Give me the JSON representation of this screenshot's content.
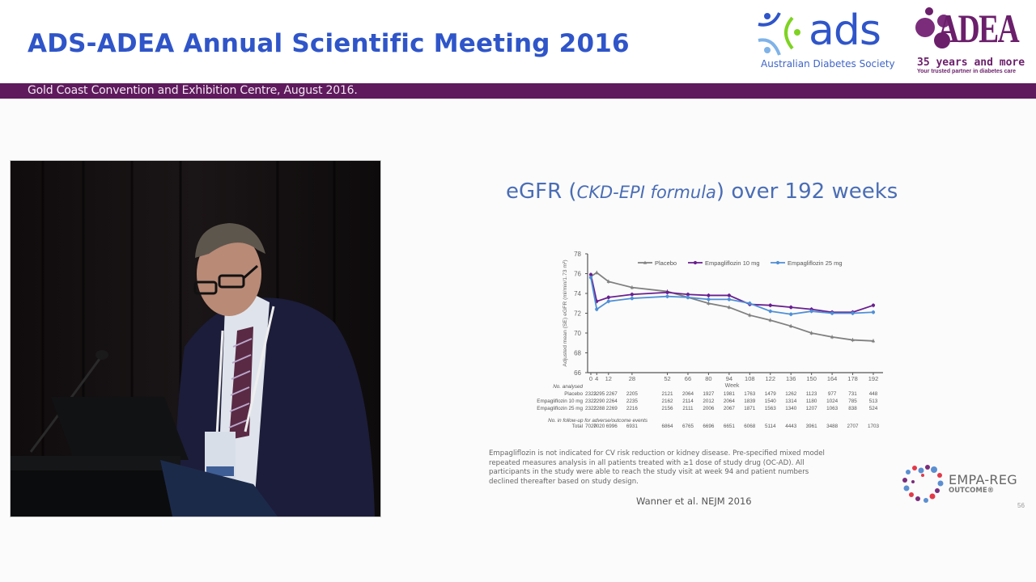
{
  "header": {
    "title": "ADS-ADEA Annual Scientific Meeting 2016",
    "subtitle": "Gold Coast Convention and Exhibition Centre, August 2016.",
    "colors": {
      "title": "#2f55c9",
      "bar": "#5e1a5c"
    }
  },
  "logos": {
    "ads": {
      "word": "ads",
      "subtitle": "Australian Diabetes Society"
    },
    "adea": {
      "word": "ADEA",
      "years": "35 years and more",
      "tagline": "Your trusted partner in diabetes care"
    },
    "empa": {
      "word": "EMPA-REG",
      "sub": "OUTCOME®"
    }
  },
  "video": {
    "description": "Presenter speaking at lectern"
  },
  "slide": {
    "title_pre": "eGFR (",
    "title_italic": "CKD-EPI formula",
    "title_post": ") over 192 weeks",
    "footnote": "Empagliflozin is not indicated for CV risk reduction or kidney disease. Pre-specified mixed model repeated measures analysis in all patients treated with ≥1 dose of study drug (OC-AD). All participants in the study were able to reach the study visit at week 94 and patient numbers declined thereafter based on study design.",
    "citation": "Wanner et al. NEJM 2016",
    "slide_number": "56"
  },
  "chart_data": {
    "type": "line",
    "title": "eGFR (CKD-EPI formula) over 192 weeks",
    "xlabel": "Week",
    "ylabel": "Adjusted mean (SE) eGFR (ml/min/1.73 m²)",
    "ylim": [
      66,
      78
    ],
    "yticks": [
      66,
      68,
      70,
      72,
      74,
      76,
      78
    ],
    "x": [
      0,
      4,
      12,
      28,
      52,
      66,
      80,
      94,
      108,
      122,
      136,
      150,
      164,
      178,
      192
    ],
    "legend_position": "top",
    "grid": false,
    "series": [
      {
        "name": "Placebo",
        "color": "#808080",
        "marker": "triangle",
        "values": [
          75.7,
          76.1,
          75.2,
          74.6,
          74.2,
          73.6,
          73.0,
          72.6,
          71.8,
          71.3,
          70.7,
          70.0,
          69.6,
          69.3,
          69.2
        ]
      },
      {
        "name": "Empagliflozin 10 mg",
        "color": "#6a1f8f",
        "marker": "circle",
        "values": [
          75.9,
          73.2,
          73.6,
          73.9,
          74.1,
          73.9,
          73.8,
          73.8,
          72.9,
          72.8,
          72.6,
          72.4,
          72.1,
          72.1,
          72.8
        ]
      },
      {
        "name": "Empagliflozin 25 mg",
        "color": "#4f8fd6",
        "marker": "circle",
        "values": [
          75.6,
          72.4,
          73.2,
          73.5,
          73.7,
          73.6,
          73.4,
          73.4,
          73.0,
          72.2,
          71.9,
          72.2,
          72.0,
          72.0,
          72.1
        ]
      }
    ],
    "table": {
      "analysed_label": "No. analysed",
      "rows": [
        {
          "label": "Placebo",
          "values": [
            2323,
            2295,
            2267,
            2205,
            2121,
            2064,
            1927,
            1981,
            1763,
            1479,
            1262,
            1123,
            977,
            731,
            448
          ]
        },
        {
          "label": "Empagliflozin 10 mg",
          "values": [
            2322,
            2290,
            2264,
            2235,
            2162,
            2114,
            2012,
            2064,
            1839,
            1540,
            1314,
            1180,
            1024,
            785,
            513
          ]
        },
        {
          "label": "Empagliflozin 25 mg",
          "values": [
            2322,
            2288,
            2269,
            2216,
            2156,
            2111,
            2006,
            2067,
            1871,
            1563,
            1340,
            1207,
            1063,
            838,
            524
          ]
        }
      ],
      "followup_label": "No. in follow-up for adverse/outcome events",
      "total": {
        "label": "Total",
        "values": [
          7020,
          7020,
          6996,
          6931,
          6864,
          6765,
          6696,
          6651,
          6068,
          5114,
          4443,
          3961,
          3488,
          2707,
          1703
        ]
      }
    }
  }
}
